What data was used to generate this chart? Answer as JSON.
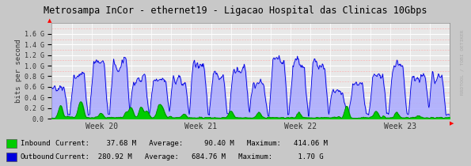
{
  "title": "Metrosampa InCor - ethernet19 - Ligacao Hospital das Clinicas 10Gbps",
  "ylabel": "bits per second",
  "bg_color": "#c8c8c8",
  "plot_bg_color": "#e8e8e8",
  "grid_color": "#ffffff",
  "inbound_color": "#00cc00",
  "inbound_line_color": "#007700",
  "outbound_color": "#0000dd",
  "outbound_fill_color": "#aaaaff",
  "ylim_max": 1800000000.0,
  "ytick_vals": [
    0.0,
    200000000.0,
    400000000.0,
    600000000.0,
    800000000.0,
    1000000000.0,
    1200000000.0,
    1400000000.0,
    1600000000.0
  ],
  "ytick_labels": [
    "0.0",
    "0.2 G",
    "0.4 G",
    "0.6 G",
    "0.8 G",
    "1.0 G",
    "1.2 G",
    "1.4 G",
    "1.6 G"
  ],
  "week_labels": [
    "Week 20",
    "Week 21",
    "Week 22",
    "Week 23"
  ],
  "watermark": "RRDTOOL / TOBI OETIKER",
  "n_points": 800,
  "seed": 7,
  "leg_inbound_label": "Inbound ",
  "leg_outbound_label": "Outbound",
  "leg_inbound_line1": "Current:    37.68 M   Average:     90.40 M   Maximum:   414.06 M",
  "leg_outbound_line2": "Current:  280.92 M   Average:   684.76 M   Maximum:      1.70 G"
}
